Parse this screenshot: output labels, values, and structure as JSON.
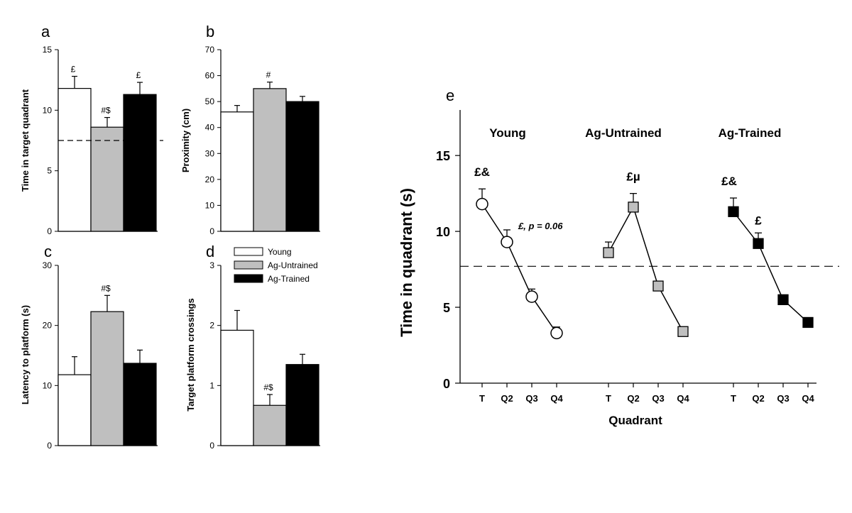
{
  "chart_data": [
    {
      "panel": "a",
      "type": "bar",
      "ylabel": "Time in target quadrant",
      "ylim": [
        0,
        15
      ],
      "yticks": [
        0,
        5,
        10,
        15
      ],
      "categories": [
        "Young",
        "Ag-Untrained",
        "Ag-Trained"
      ],
      "values": [
        11.8,
        8.6,
        11.3
      ],
      "errors": [
        1.0,
        0.8,
        1.0
      ],
      "annotations": [
        "£",
        "#$",
        "£"
      ],
      "reference_line": 7.5
    },
    {
      "panel": "b",
      "type": "bar",
      "ylabel": "Proximity (cm)",
      "ylim": [
        0,
        70
      ],
      "yticks": [
        0,
        10,
        20,
        30,
        40,
        50,
        60,
        70
      ],
      "categories": [
        "Young",
        "Ag-Untrained",
        "Ag-Trained"
      ],
      "values": [
        46,
        55,
        50
      ],
      "errors": [
        2.5,
        2.5,
        2.0
      ],
      "annotations": [
        "",
        "#",
        ""
      ]
    },
    {
      "panel": "c",
      "type": "bar",
      "ylabel": "Latency to platform (s)",
      "ylim": [
        0,
        30
      ],
      "yticks": [
        0,
        10,
        20,
        30
      ],
      "categories": [
        "Young",
        "Ag-Untrained",
        "Ag-Trained"
      ],
      "values": [
        11.8,
        22.3,
        13.7
      ],
      "errors": [
        3.0,
        2.7,
        2.2
      ],
      "annotations": [
        "",
        "#$",
        ""
      ]
    },
    {
      "panel": "d",
      "type": "bar",
      "ylabel": "Target platform crossings",
      "ylim": [
        0,
        3
      ],
      "yticks": [
        0,
        1,
        2,
        3
      ],
      "categories": [
        "Young",
        "Ag-Untrained",
        "Ag-Trained"
      ],
      "values": [
        1.92,
        0.67,
        1.35
      ],
      "errors": [
        0.33,
        0.18,
        0.17
      ],
      "annotations": [
        "",
        "#$",
        ""
      ],
      "legend": {
        "placement": "top",
        "entries": [
          {
            "label": "Young",
            "color": "#ffffff"
          },
          {
            "label": "Ag-Untrained",
            "color": "#bfbfbf"
          },
          {
            "label": "Ag-Trained",
            "color": "#000000"
          }
        ]
      }
    },
    {
      "panel": "e",
      "type": "line",
      "ylabel": "Time in quadrant (s)",
      "xlabel": "Quadrant",
      "ylim": [
        0,
        18
      ],
      "yticks": [
        0,
        5,
        10,
        15
      ],
      "reference_line": 7.7,
      "series": [
        {
          "name": "Young",
          "marker": "circle",
          "fill": "#ffffff",
          "x": [
            "T",
            "Q2",
            "Q3",
            "Q4"
          ],
          "values": [
            11.8,
            9.3,
            5.7,
            3.3
          ],
          "errors": [
            1.0,
            0.8,
            0.5,
            0.4
          ],
          "annotations": [
            "£&",
            "£, p = 0.06",
            "",
            ""
          ]
        },
        {
          "name": "Ag-Untrained",
          "marker": "square",
          "fill": "#bfbfbf",
          "x": [
            "T",
            "Q2",
            "Q3",
            "Q4"
          ],
          "values": [
            8.6,
            11.6,
            6.4,
            3.4
          ],
          "errors": [
            0.7,
            0.9,
            0.3,
            0.2
          ],
          "annotations": [
            "",
            "£µ",
            "",
            ""
          ]
        },
        {
          "name": "Ag-Trained",
          "marker": "square",
          "fill": "#000000",
          "x": [
            "T",
            "Q2",
            "Q3",
            "Q4"
          ],
          "values": [
            11.3,
            9.2,
            5.5,
            4.0
          ],
          "errors": [
            0.9,
            0.7,
            0.3,
            0.2
          ],
          "annotations": [
            "£&",
            "£",
            "",
            ""
          ]
        }
      ]
    }
  ]
}
